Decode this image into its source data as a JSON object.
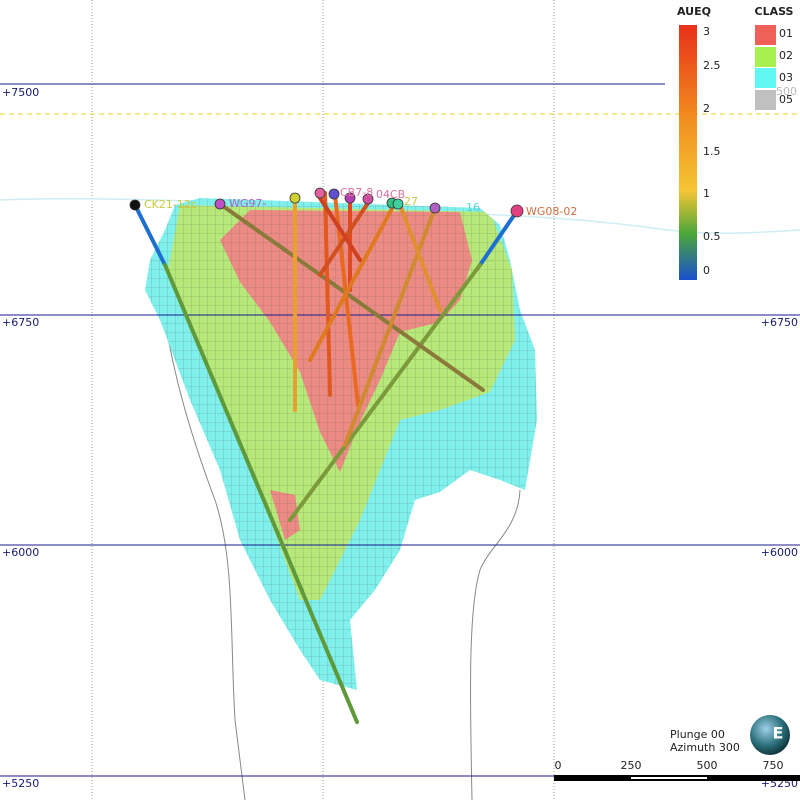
{
  "elevation_labels": [
    "+7500",
    "+6750",
    "+6000",
    "+5250"
  ],
  "legend_aueq": {
    "title": "AUEQ",
    "ticks": [
      "3",
      "2.5",
      "2",
      "1.5",
      "1",
      "0.5",
      "0"
    ]
  },
  "legend_class": {
    "title": "CLASS",
    "items": [
      "01",
      "02",
      "03",
      "05"
    ],
    "overlay_text": "500"
  },
  "drillholes": [
    "CK21-12c",
    "WG97-",
    "CB7-8",
    "04CB",
    "27",
    "16",
    "WG08-02"
  ],
  "view": {
    "plunge": "Plunge 00",
    "azimuth": "Azimuth 300"
  },
  "scale_bar": [
    "0",
    "250",
    "500",
    "750"
  ],
  "compass": "E"
}
